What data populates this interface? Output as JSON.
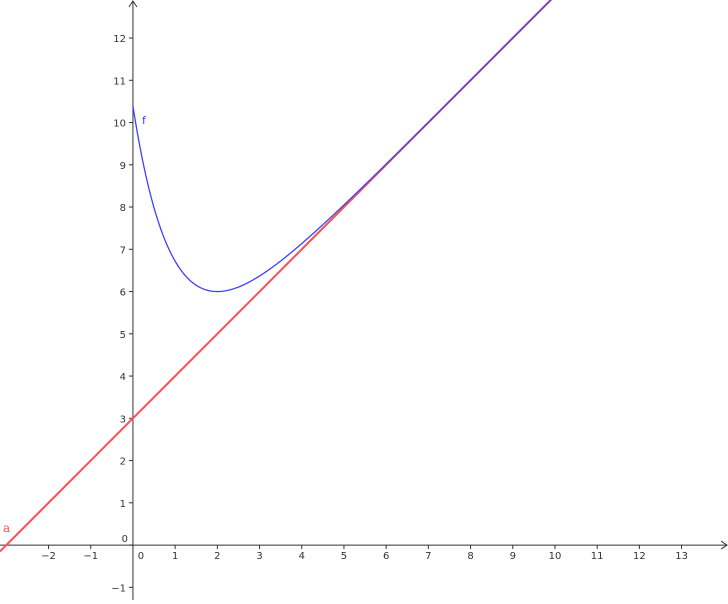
{
  "chart_data": {
    "type": "line",
    "title": "",
    "xlabel": "",
    "ylabel": "",
    "xlim": [
      -3.15,
      14.1
    ],
    "ylim": [
      -1.3,
      12.9
    ],
    "grid": false,
    "x_ticks": [
      -2,
      -1,
      0,
      1,
      2,
      3,
      4,
      5,
      6,
      7,
      8,
      9,
      10,
      11,
      12,
      13
    ],
    "y_ticks": [
      -1,
      0,
      1,
      2,
      3,
      4,
      5,
      6,
      7,
      8,
      9,
      10,
      11,
      12
    ],
    "origin_label": "0",
    "series": [
      {
        "name": "f",
        "expression": "x + 3 + e^(2 - x)",
        "domain": [
          0,
          14.1
        ],
        "color": "#4040ff",
        "minimum": [
          2,
          6
        ],
        "value_at_0": 10.39
      },
      {
        "name": "a",
        "expression": "x + 3",
        "color": "#ff4d4d",
        "x_intercept": -3,
        "y_intercept": 3
      }
    ]
  }
}
